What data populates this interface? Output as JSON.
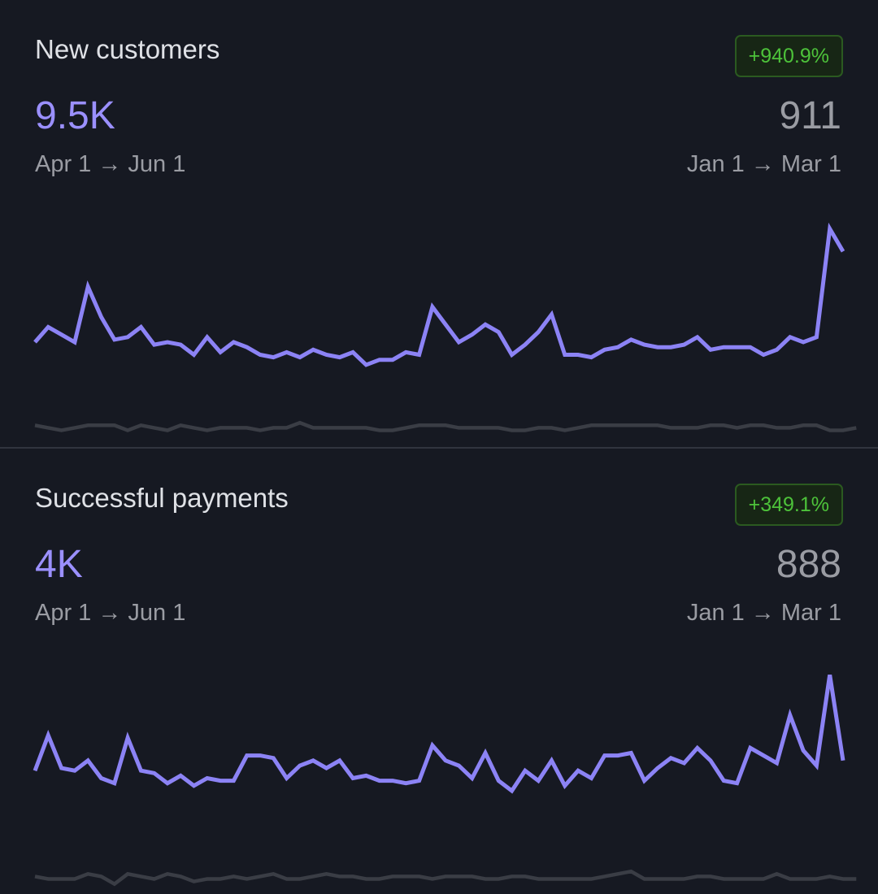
{
  "colors": {
    "background": "#161922",
    "current_line": "#8c83f5",
    "prior_line": "#3a3d45",
    "badge_text": "#4dc23a",
    "badge_border": "#2b5a20"
  },
  "cards": [
    {
      "title": "New customers",
      "change_badge": "+940.9%",
      "current_value": "9.5K",
      "prior_value": "911",
      "current_range": "Apr 1 → Jun 1",
      "prior_range": "Jan 1 → Mar 1"
    },
    {
      "title": "Successful payments",
      "change_badge": "+349.1%",
      "current_value": "4K",
      "prior_value": "888",
      "current_range": "Apr 1 → Jun 1",
      "prior_range": "Jan 1 → Mar 1"
    }
  ],
  "chart_data": [
    {
      "type": "line",
      "ylim": [
        0,
        100
      ],
      "grid": false,
      "legend": "none",
      "series": [
        {
          "values": [
            40,
            46,
            43,
            40,
            62,
            50,
            41,
            42,
            46,
            39,
            40,
            39,
            35,
            42,
            36,
            40,
            38,
            35,
            34,
            36,
            34,
            37,
            35,
            34,
            36,
            31,
            33,
            33,
            36,
            35,
            54,
            47,
            40,
            43,
            47,
            44,
            35,
            39,
            44,
            51,
            35,
            35,
            34,
            37,
            38,
            41,
            39,
            38,
            38,
            39,
            42,
            37,
            38,
            38,
            38,
            35,
            37,
            42,
            40,
            42,
            85,
            76
          ],
          "color": "#8c83f5"
        },
        {
          "values": [
            7,
            6,
            5,
            6,
            7,
            7,
            7,
            5,
            7,
            6,
            5,
            7,
            6,
            5,
            6,
            6,
            6,
            5,
            6,
            6,
            8,
            6,
            6,
            6,
            6,
            6,
            5,
            5,
            6,
            7,
            7,
            7,
            6,
            6,
            6,
            6,
            5,
            5,
            6,
            6,
            5,
            6,
            7,
            7,
            7,
            7,
            7,
            7,
            6,
            6,
            6,
            7,
            7,
            6,
            7,
            7,
            6,
            6,
            7,
            7,
            5,
            5,
            6
          ],
          "color": "#3a3d45"
        }
      ]
    },
    {
      "type": "line",
      "ylim": [
        0,
        100
      ],
      "grid": false,
      "legend": "none",
      "series": [
        {
          "values": [
            48,
            62,
            49,
            48,
            52,
            45,
            43,
            61,
            48,
            47,
            43,
            46,
            42,
            45,
            44,
            44,
            54,
            54,
            53,
            45,
            50,
            52,
            49,
            52,
            45,
            46,
            44,
            44,
            43,
            44,
            58,
            52,
            50,
            45,
            55,
            44,
            40,
            48,
            44,
            52,
            42,
            48,
            45,
            54,
            54,
            55,
            44,
            49,
            53,
            51,
            57,
            52,
            44,
            43,
            57,
            54,
            51,
            70,
            56,
            50,
            86,
            52
          ],
          "color": "#8c83f5"
        },
        {
          "values": [
            6,
            5,
            5,
            5,
            7,
            6,
            3,
            7,
            6,
            5,
            7,
            6,
            4,
            5,
            5,
            6,
            5,
            6,
            7,
            5,
            5,
            6,
            7,
            6,
            6,
            5,
            5,
            6,
            6,
            6,
            5,
            6,
            6,
            6,
            5,
            5,
            6,
            6,
            5,
            5,
            5,
            5,
            5,
            6,
            7,
            8,
            5,
            5,
            5,
            5,
            6,
            6,
            5,
            5,
            5,
            5,
            7,
            5,
            5,
            5,
            6,
            5,
            5
          ],
          "color": "#3a3d45"
        }
      ]
    }
  ]
}
